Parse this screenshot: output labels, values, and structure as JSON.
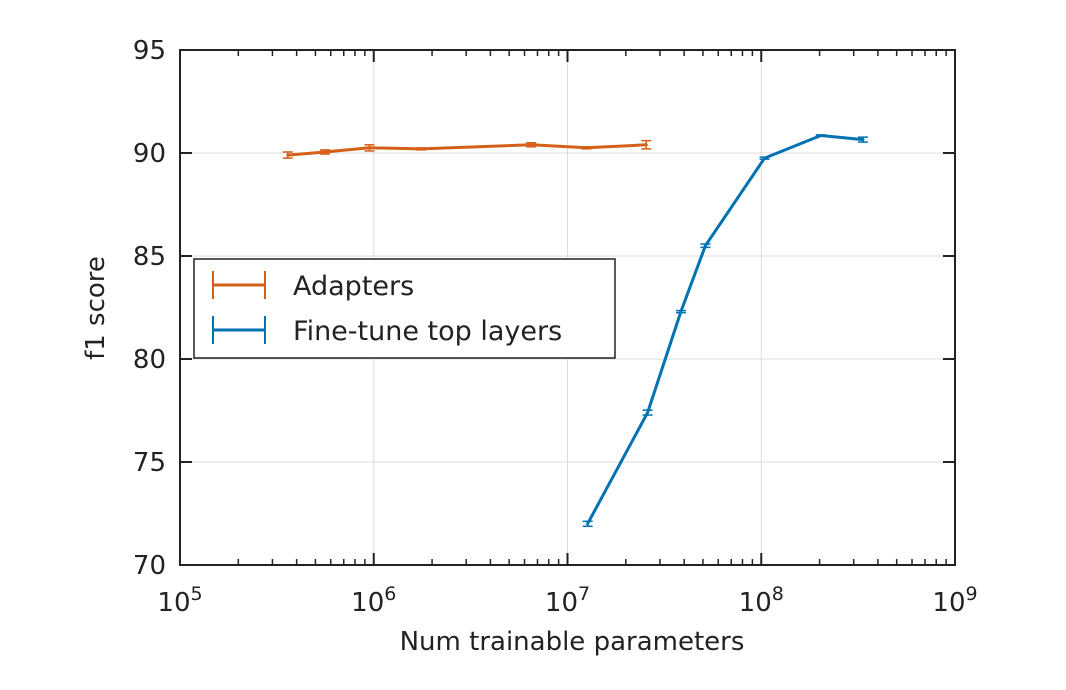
{
  "chart_data": {
    "type": "line",
    "xlabel": "Num trainable parameters",
    "ylabel": "f1 score",
    "x_scale": "log",
    "xlim": [
      100000,
      1000000000
    ],
    "ylim": [
      70,
      95
    ],
    "x_ticks": [
      {
        "value": 100000,
        "base": "10",
        "exp": "5"
      },
      {
        "value": 1000000,
        "base": "10",
        "exp": "6"
      },
      {
        "value": 10000000,
        "base": "10",
        "exp": "7"
      },
      {
        "value": 100000000,
        "base": "10",
        "exp": "8"
      },
      {
        "value": 1000000000,
        "base": "10",
        "exp": "9"
      }
    ],
    "y_ticks": [
      70,
      75,
      80,
      85,
      90,
      95
    ],
    "grid": true,
    "legend_position": "center-left",
    "series": [
      {
        "name": "Adapters",
        "color": "#d5601a",
        "points": [
          {
            "x": 360000,
            "y": 89.9,
            "err": 0.15
          },
          {
            "x": 560000,
            "y": 90.05,
            "err": 0.1
          },
          {
            "x": 950000,
            "y": 90.25,
            "err": 0.15
          },
          {
            "x": 1750000,
            "y": 90.2,
            "err": 0.05
          },
          {
            "x": 6500000,
            "y": 90.4,
            "err": 0.1
          },
          {
            "x": 12500000,
            "y": 90.25,
            "err": 0.05
          },
          {
            "x": 25500000,
            "y": 90.4,
            "err": 0.2
          }
        ]
      },
      {
        "name": "Fine-tune top layers",
        "color": "#0072b2",
        "points": [
          {
            "x": 12700000,
            "y": 72.0,
            "err": 0.12
          },
          {
            "x": 25900000,
            "y": 77.4,
            "err": 0.12
          },
          {
            "x": 38500000,
            "y": 82.3,
            "err": 0.05
          },
          {
            "x": 51500000,
            "y": 85.5,
            "err": 0.08
          },
          {
            "x": 104000000,
            "y": 89.75,
            "err": 0.05
          },
          {
            "x": 203000000,
            "y": 90.85,
            "err": 0.03
          },
          {
            "x": 335000000,
            "y": 90.65,
            "err": 0.12
          }
        ]
      }
    ]
  }
}
